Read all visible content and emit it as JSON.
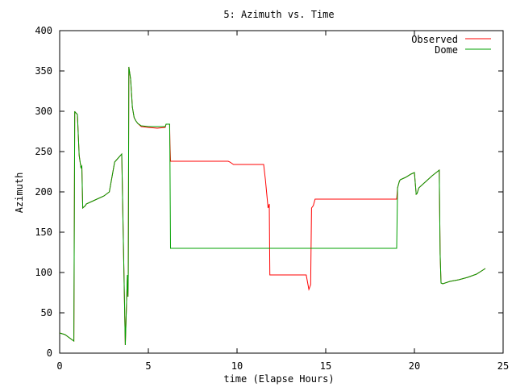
{
  "chart_data": {
    "type": "line",
    "title": "5: Azimuth vs. Time",
    "xlabel": "time (Elapse Hours)",
    "ylabel": "Azimuth",
    "xlim": [
      0,
      25
    ],
    "ylim": [
      0,
      400
    ],
    "xticks": [
      0,
      5,
      10,
      15,
      20,
      25
    ],
    "yticks": [
      0,
      50,
      100,
      150,
      200,
      250,
      300,
      350,
      400
    ],
    "grid": false,
    "legend_position": "top-right",
    "series": [
      {
        "name": "Observed",
        "color": "#ff0000",
        "x": [
          0.0,
          0.3,
          0.8,
          0.85,
          0.87,
          1.0,
          1.1,
          1.2,
          1.25,
          1.3,
          1.35,
          1.45,
          1.5,
          2.0,
          2.5,
          2.8,
          3.1,
          3.3,
          3.5,
          3.7,
          3.82,
          3.85,
          3.87,
          3.9,
          4.0,
          4.1,
          4.2,
          4.3,
          4.4,
          4.6,
          5.0,
          5.5,
          5.95,
          6.0,
          6.1,
          6.2,
          6.22,
          6.25,
          6.3,
          7.0,
          8.0,
          9.0,
          9.5,
          9.6,
          9.8,
          10.5,
          11.0,
          11.5,
          11.6,
          11.75,
          11.82,
          11.85,
          11.9,
          12.5,
          13.0,
          13.5,
          13.9,
          14.0,
          14.05,
          14.15,
          14.2,
          14.3,
          14.4,
          14.5,
          15.0,
          16.0,
          17.0,
          18.0,
          19.0,
          19.05,
          19.15,
          19.2,
          19.3,
          19.5,
          19.8,
          20.0,
          20.1,
          20.15,
          20.25,
          20.5,
          21.0,
          21.4,
          21.45,
          21.5,
          21.6,
          22.0,
          22.5,
          23.0,
          23.5,
          24.0
        ],
        "y": [
          25,
          23,
          15,
          300,
          299,
          296,
          245,
          230,
          232,
          180,
          181,
          183,
          185,
          190,
          195,
          200,
          237,
          242,
          247,
          10,
          97,
          70,
          100,
          355,
          340,
          305,
          292,
          288,
          285,
          281,
          280,
          279,
          280,
          284,
          284,
          284,
          260,
          238,
          238,
          238,
          238,
          238,
          238,
          237,
          234,
          234,
          234,
          234,
          215,
          180,
          185,
          97,
          97,
          97,
          97,
          97,
          97,
          85,
          79,
          85,
          180,
          183,
          191,
          191,
          191,
          191,
          191,
          191,
          191,
          205,
          213,
          215,
          216,
          218,
          222,
          224,
          197,
          198,
          205,
          210,
          220,
          227,
          123,
          87,
          86,
          89,
          91,
          94,
          98,
          105
        ]
      },
      {
        "name": "Dome",
        "color": "#00a000",
        "x": [
          0.0,
          0.3,
          0.8,
          0.85,
          0.87,
          1.0,
          1.1,
          1.2,
          1.25,
          1.3,
          1.35,
          1.45,
          1.5,
          2.0,
          2.5,
          2.8,
          3.1,
          3.3,
          3.5,
          3.7,
          3.82,
          3.85,
          3.87,
          3.9,
          4.0,
          4.1,
          4.2,
          4.3,
          4.4,
          4.6,
          5.0,
          5.5,
          5.95,
          6.0,
          6.1,
          6.2,
          6.22,
          6.25,
          6.3,
          7.0,
          10.0,
          14.0,
          18.0,
          19.0,
          19.05,
          19.15,
          19.2,
          19.3,
          19.5,
          19.8,
          20.0,
          20.1,
          20.15,
          20.25,
          20.5,
          21.0,
          21.4,
          21.45,
          21.5,
          21.6,
          22.0,
          22.5,
          23.0,
          23.5,
          24.0
        ],
        "y": [
          25,
          23,
          15,
          300,
          299,
          296,
          245,
          230,
          232,
          180,
          181,
          183,
          185,
          190,
          195,
          200,
          237,
          242,
          247,
          10,
          97,
          70,
          100,
          355,
          340,
          305,
          292,
          288,
          285,
          282,
          281,
          281,
          281,
          284,
          284,
          284,
          240,
          130,
          130,
          130,
          130,
          130,
          130,
          130,
          205,
          213,
          215,
          216,
          218,
          222,
          224,
          197,
          198,
          205,
          210,
          220,
          227,
          123,
          87,
          86,
          89,
          91,
          94,
          98,
          105
        ]
      }
    ]
  }
}
